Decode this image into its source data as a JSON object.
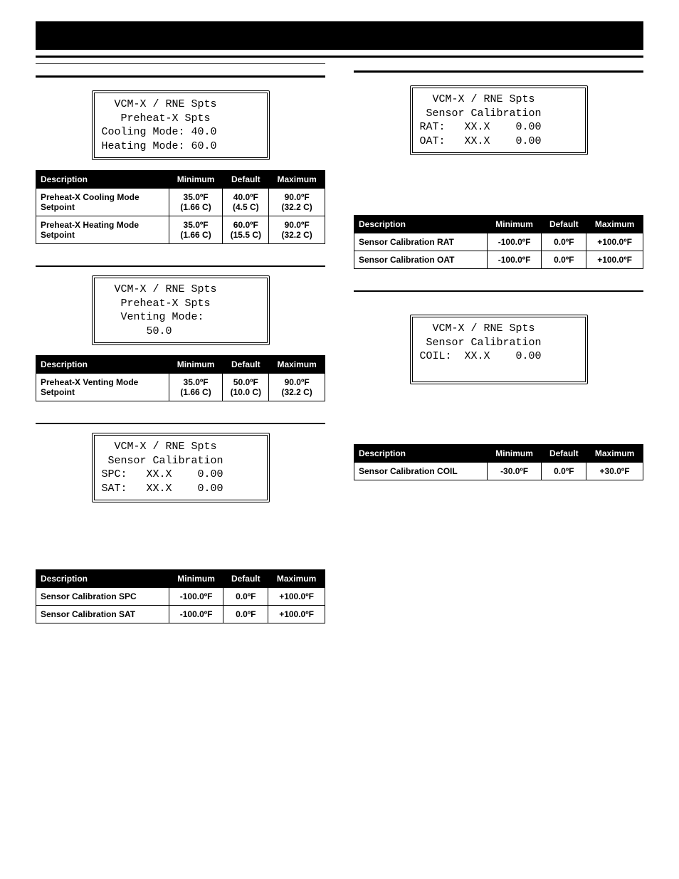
{
  "columnHeaders": {
    "desc": "Description",
    "min": "Minimum",
    "def": "Default",
    "max": "Maximum"
  },
  "left": {
    "block1": {
      "lcd": "  VCM-X / RNE Spts\n   Preheat-X Spts\nCooling Mode: 40.0\nHeating Mode: 60.0",
      "rows": [
        {
          "desc": "Preheat-X Cooling Mode Setpoint",
          "min": "35.0ºF\n(1.66 C)",
          "def": "40.0ºF\n(4.5 C)",
          "max": "90.0ºF\n(32.2 C)"
        },
        {
          "desc": "Preheat-X Heating Mode Setpoint",
          "min": "35.0ºF\n(1.66 C)",
          "def": "60.0ºF\n(15.5 C)",
          "max": "90.0ºF\n(32.2 C)"
        }
      ]
    },
    "block2": {
      "lcd": "  VCM-X / RNE Spts\n   Preheat-X Spts\n   Venting Mode:\n       50.0",
      "rows": [
        {
          "desc": "Preheat-X Venting Mode Setpoint",
          "min": "35.0ºF\n(1.66 C)",
          "def": "50.0ºF\n(10.0 C)",
          "max": "90.0ºF\n(32.2 C)"
        }
      ]
    },
    "block3": {
      "lcd": "  VCM-X / RNE Spts\n Sensor Calibration\nSPC:   XX.X    0.00\nSAT:   XX.X    0.00",
      "rows": [
        {
          "desc": "Sensor Calibration SPC",
          "min": "-100.0ºF",
          "def": "0.0ºF",
          "max": "+100.0ºF"
        },
        {
          "desc": "Sensor Calibration SAT",
          "min": "-100.0ºF",
          "def": "0.0ºF",
          "max": "+100.0ºF"
        }
      ]
    }
  },
  "right": {
    "block1": {
      "lcd": "  VCM-X / RNE Spts\n Sensor Calibration\nRAT:   XX.X    0.00\nOAT:   XX.X    0.00",
      "rows": [
        {
          "desc": "Sensor Calibration RAT",
          "min": "-100.0ºF",
          "def": "0.0ºF",
          "max": "+100.0ºF"
        },
        {
          "desc": "Sensor Calibration OAT",
          "min": "-100.0ºF",
          "def": "0.0ºF",
          "max": "+100.0ºF"
        }
      ]
    },
    "block2": {
      "lcd": "  VCM-X / RNE Spts\n Sensor Calibration\nCOIL:  XX.X    0.00\n ",
      "rows": [
        {
          "desc": "Sensor Calibration COIL",
          "min": "-30.0ºF",
          "def": "0.0ºF",
          "max": "+30.0ºF"
        }
      ]
    }
  }
}
